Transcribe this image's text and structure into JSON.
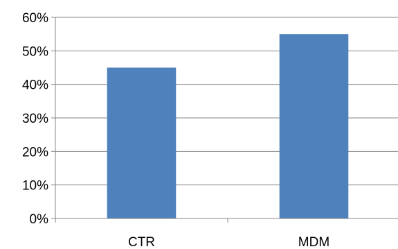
{
  "chart_data": {
    "type": "bar",
    "categories": [
      "CTR",
      "MDM"
    ],
    "values": [
      0.45,
      0.55
    ],
    "y_tick_labels": [
      "0%",
      "10%",
      "20%",
      "30%",
      "40%",
      "50%",
      "60%"
    ],
    "y_ticks": [
      0,
      0.1,
      0.2,
      0.3,
      0.4,
      0.5,
      0.6
    ],
    "ylim": [
      0,
      0.6
    ],
    "grid": true,
    "legend": "none",
    "bar_color": "#4F81BD",
    "grid_color": "#868686",
    "axis_color": "#868686"
  }
}
